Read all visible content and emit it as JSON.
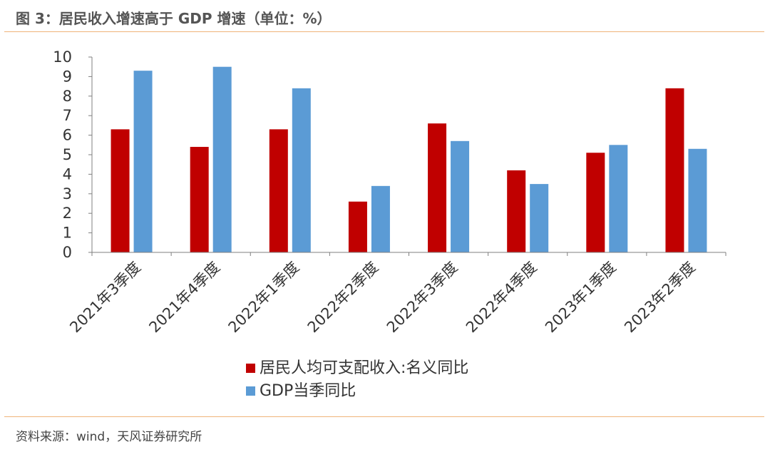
{
  "figure": {
    "title": "图 3：居民收入增速高于 GDP 增速（单位：%）",
    "source": "资料来源：wind，天风证券研究所"
  },
  "colors": {
    "accent_rule": "#f0b47a",
    "series_1": "#c00000",
    "series_2": "#5b9bd5"
  },
  "chart_data": {
    "type": "bar",
    "categories": [
      "2021年3季度",
      "2021年4季度",
      "2022年1季度",
      "2022年2季度",
      "2022年3季度",
      "2022年4季度",
      "2023年1季度",
      "2023年2季度"
    ],
    "series": [
      {
        "name": "居民人均可支配收入:名义同比",
        "values": [
          6.3,
          5.4,
          6.3,
          2.6,
          6.6,
          4.2,
          5.1,
          8.4
        ]
      },
      {
        "name": "GDP当季同比",
        "values": [
          9.3,
          9.5,
          8.4,
          3.4,
          5.7,
          3.5,
          5.5,
          5.3
        ]
      }
    ],
    "ylim": [
      0,
      10
    ],
    "yticks": [
      "0",
      "1",
      "2",
      "3",
      "4",
      "5",
      "6",
      "7",
      "8",
      "9",
      "10"
    ],
    "grid": false,
    "legend_position": "bottom-center"
  }
}
